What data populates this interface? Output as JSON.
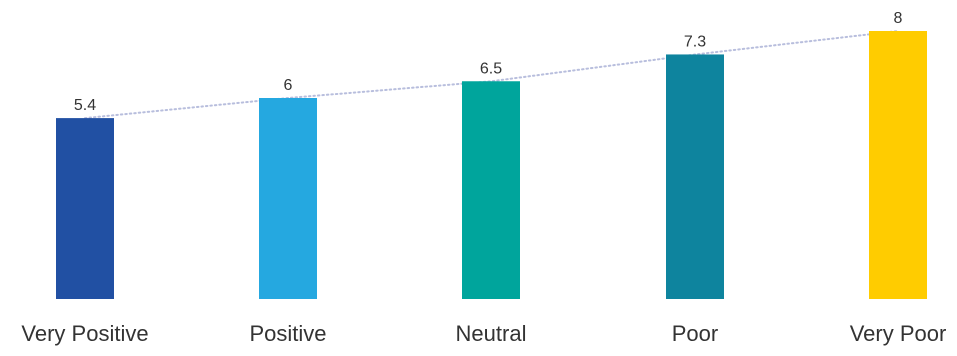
{
  "chart_data": {
    "type": "bar",
    "categories": [
      "Very Positive",
      "Positive",
      "Neutral",
      "Poor",
      "Very Poor"
    ],
    "values": [
      5.4,
      6,
      6.5,
      7.3,
      8
    ],
    "value_labels": [
      "5.4",
      "6",
      "6.5",
      "7.3",
      "8"
    ],
    "colors": [
      "#2150A3",
      "#25A8E0",
      "#00A59C",
      "#0E849E",
      "#FFCC00"
    ],
    "trendline": {
      "style": "dotted",
      "color": "#B8BEDD"
    },
    "title": "",
    "xlabel": "",
    "ylabel": "",
    "grid": false,
    "legend": "none"
  }
}
